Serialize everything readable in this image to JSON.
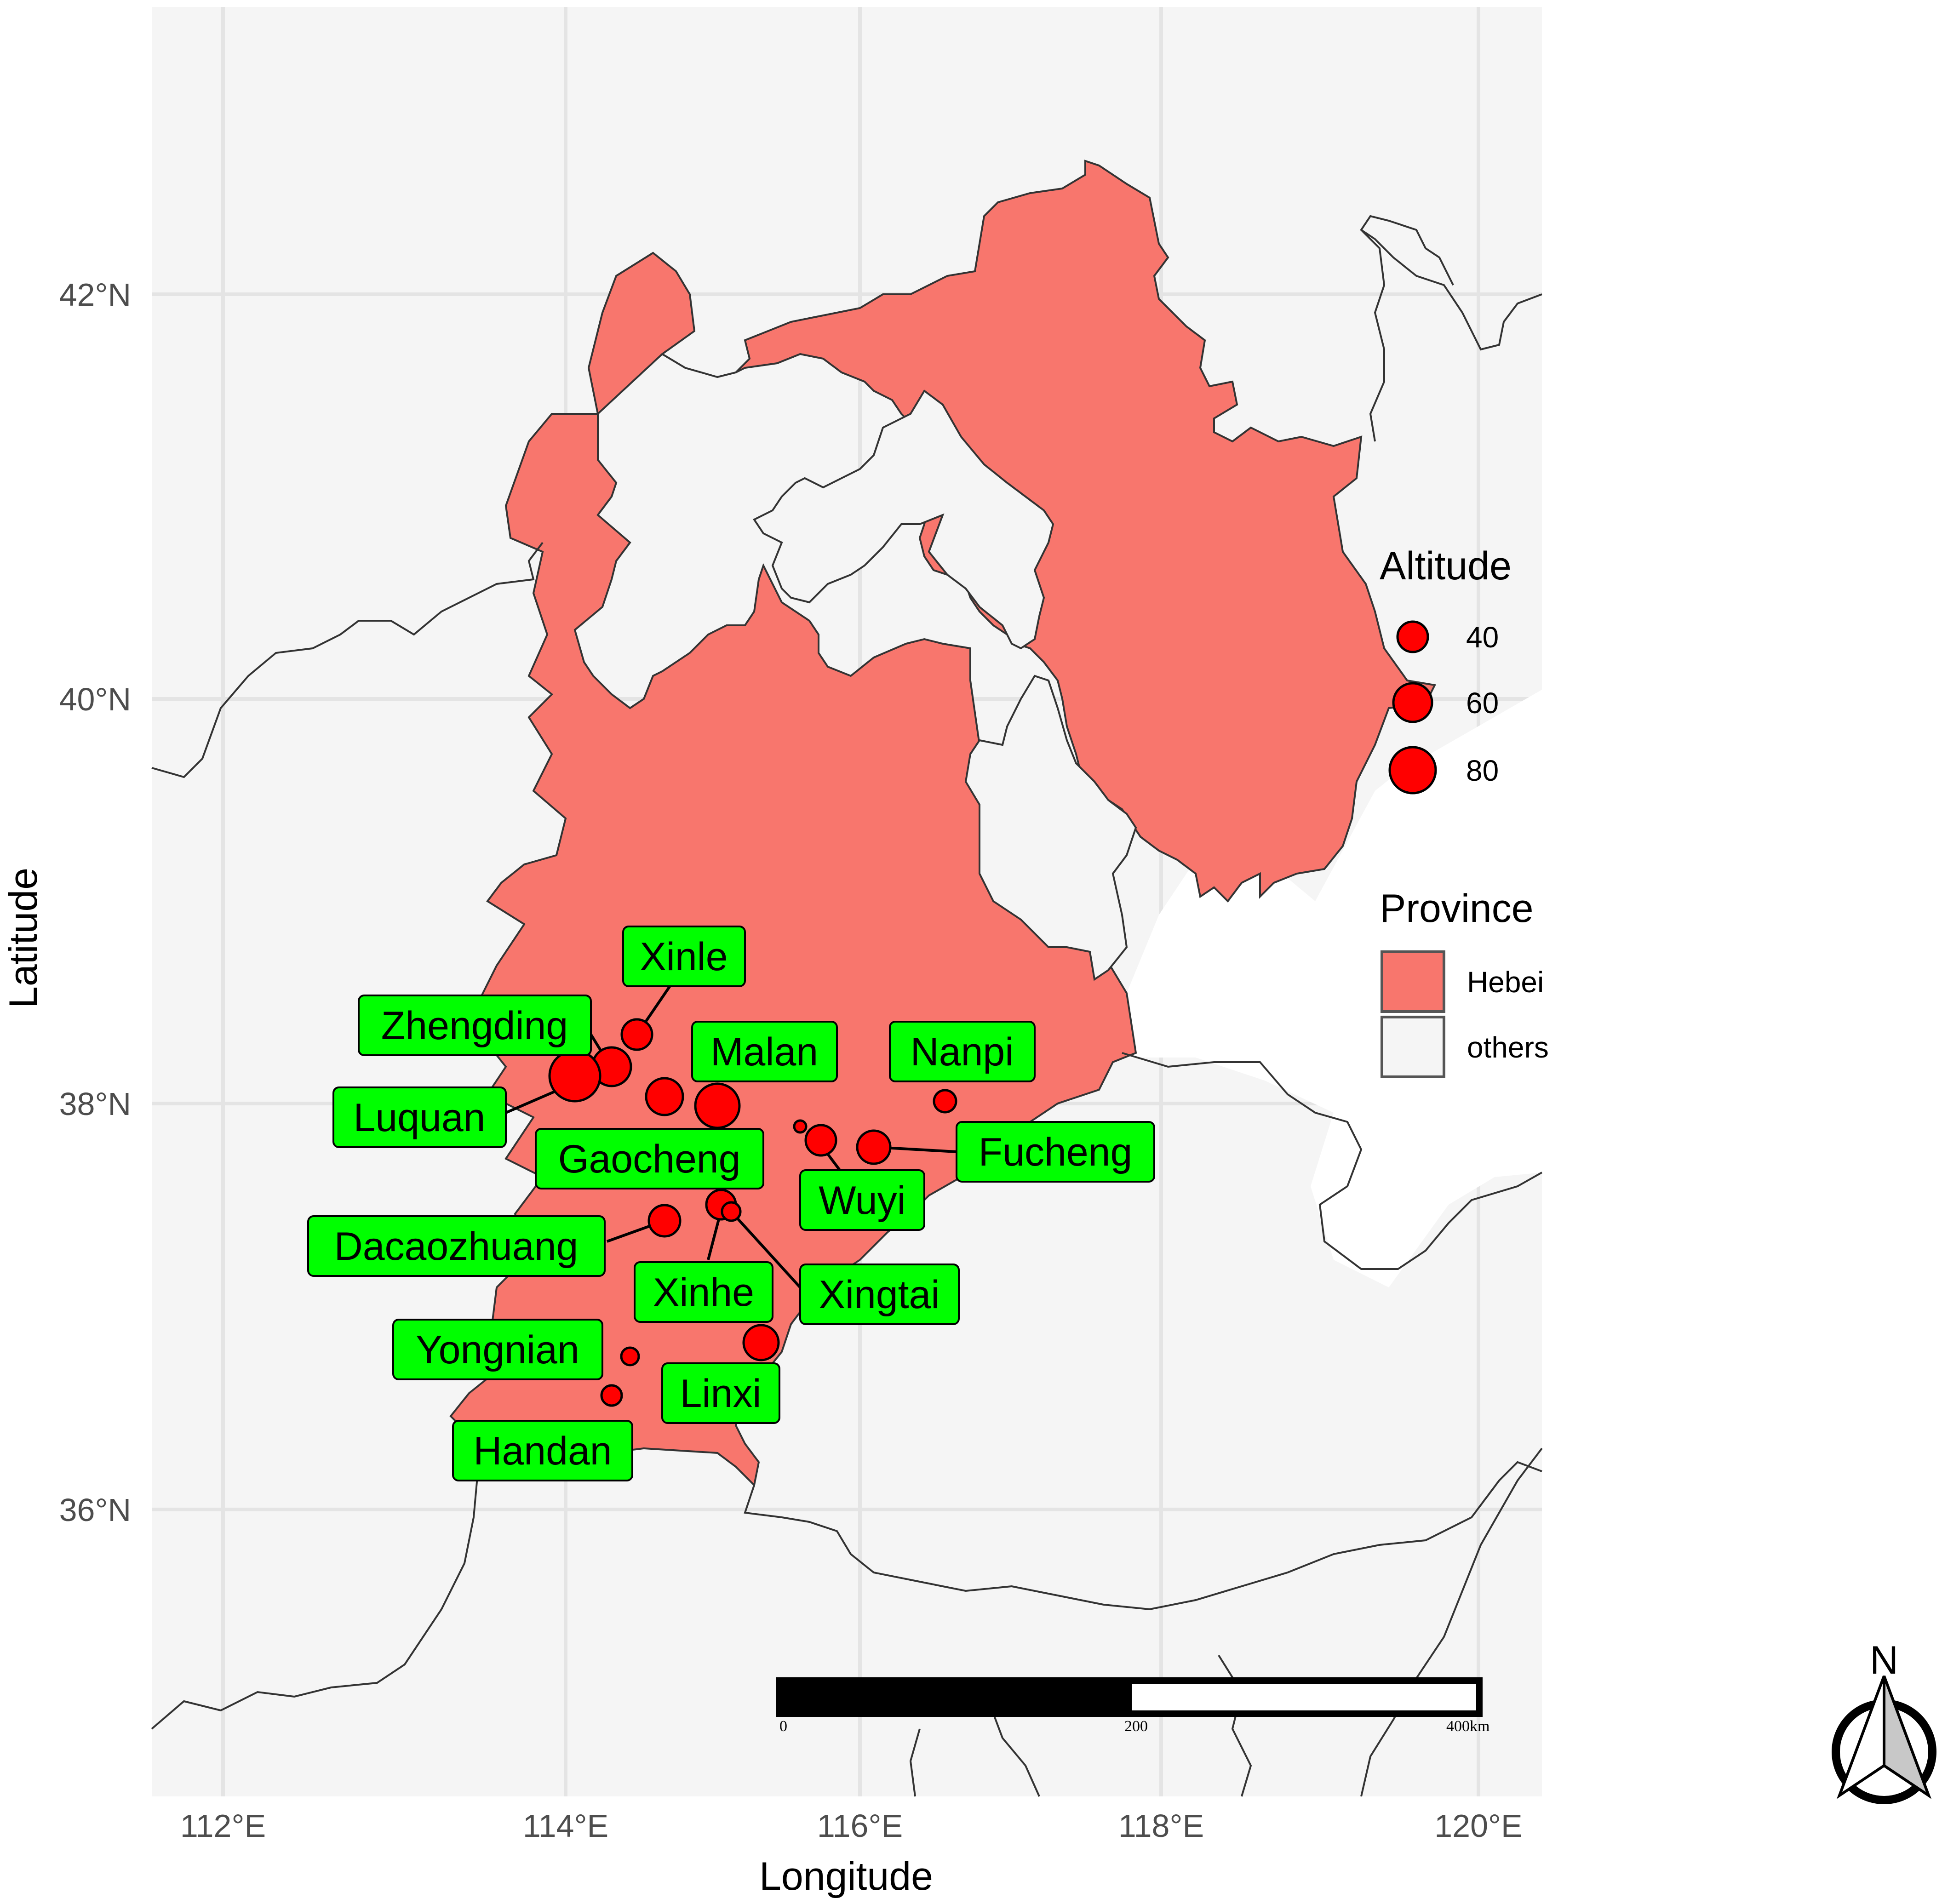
{
  "map": {
    "x_axis_title": "Longitude",
    "y_axis_title": "Latitude",
    "x_ticks": [
      "112°E",
      "114°E",
      "116°E",
      "118°E",
      "120°E"
    ],
    "y_ticks": [
      "42°N",
      "40°N",
      "38°N",
      "36°N"
    ],
    "hebei_color": "#F8766D",
    "others_color": "#F5F5F5",
    "point_color": "#FF0000",
    "label_bg_color": "#00FF00"
  },
  "legend": {
    "altitude_title": "Altitude",
    "altitude_values": [
      "40",
      "60",
      "80"
    ],
    "province_title": "Province",
    "province_items": [
      "Hebei",
      "others"
    ]
  },
  "sites": [
    {
      "name": "Xinle"
    },
    {
      "name": "Zhengding"
    },
    {
      "name": "Malan"
    },
    {
      "name": "Nanpi"
    },
    {
      "name": "Luquan"
    },
    {
      "name": "Gaocheng"
    },
    {
      "name": "Fucheng"
    },
    {
      "name": "Wuyi"
    },
    {
      "name": "Dacaozhuang"
    },
    {
      "name": "Xinhe"
    },
    {
      "name": "Xingtai"
    },
    {
      "name": "Yongnian"
    },
    {
      "name": "Linxi"
    },
    {
      "name": "Handan"
    }
  ],
  "scale_bar": {
    "labels": [
      "0",
      "200",
      "400km"
    ]
  },
  "north_arrow": {
    "label": "N"
  }
}
